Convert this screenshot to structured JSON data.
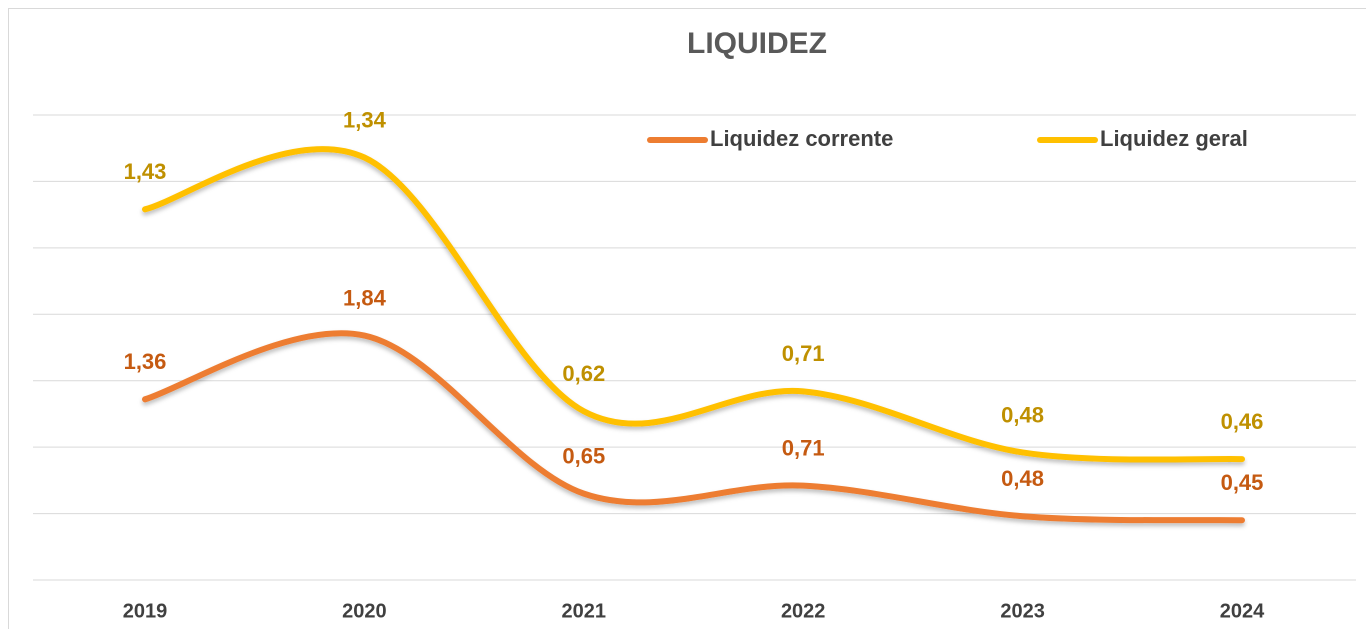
{
  "chart_data": {
    "type": "line",
    "title": "LIQUIDEZ",
    "stacked": true,
    "categories": [
      "2019",
      "2020",
      "2021",
      "2022",
      "2023",
      "2024"
    ],
    "series": [
      {
        "name": "Liquidez corrente",
        "color": "#ED7D31",
        "label_color": "#C55A11",
        "values": [
          1.36,
          1.84,
          0.65,
          0.71,
          0.48,
          0.45
        ],
        "value_labels": [
          "1,36",
          "1,84",
          "0,65",
          "0,71",
          "0,48",
          "0,45"
        ]
      },
      {
        "name": "Liquidez geral",
        "color": "#FFC000",
        "label_color": "#BF9000",
        "values": [
          1.43,
          1.34,
          0.62,
          0.71,
          0.48,
          0.46
        ],
        "value_labels": [
          "1,43",
          "1,34",
          "0,62",
          "0,71",
          "0,48",
          "0,46"
        ]
      }
    ],
    "ylim": [
      0,
      3.5
    ],
    "yticks": [
      0,
      0.5,
      1,
      1.5,
      2,
      2.5,
      3,
      3.5
    ],
    "grid": true,
    "smooth": true,
    "legend": "top-right"
  }
}
